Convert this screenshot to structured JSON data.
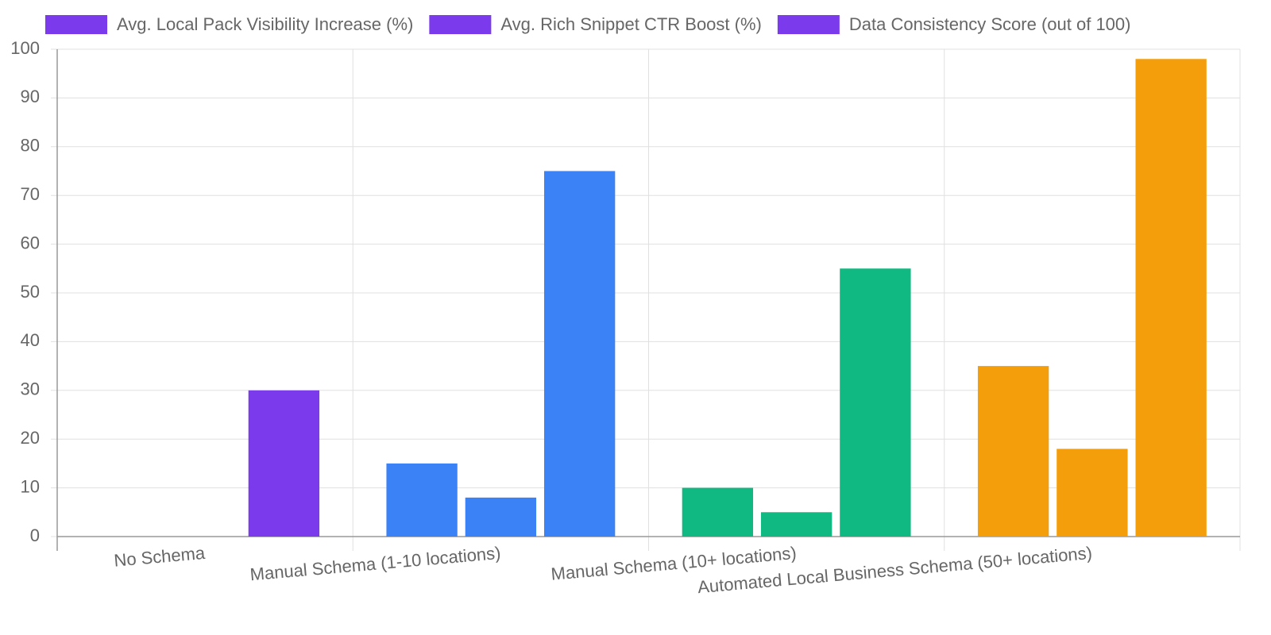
{
  "chart_data": {
    "type": "bar",
    "categories": [
      "No Schema",
      "Manual Schema (1-10 locations)",
      "Manual Schema (10+ locations)",
      "Automated Local Business Schema (50+ locations)"
    ],
    "category_colors": [
      "#7c3aed",
      "#3b82f6",
      "#10b981",
      "#f59e0b"
    ],
    "series": [
      {
        "name": "Avg. Local Pack Visibility Increase (%)",
        "values": [
          0,
          15,
          10,
          35
        ]
      },
      {
        "name": "Avg. Rich Snippet CTR Boost (%)",
        "values": [
          0,
          8,
          5,
          18
        ]
      },
      {
        "name": "Data Consistency Score (out of 100)",
        "values": [
          30,
          75,
          55,
          98
        ]
      }
    ],
    "ylim": [
      0,
      100
    ],
    "yticks": [
      0,
      10,
      20,
      30,
      40,
      50,
      60,
      70,
      80,
      90,
      100
    ],
    "grid": true
  }
}
